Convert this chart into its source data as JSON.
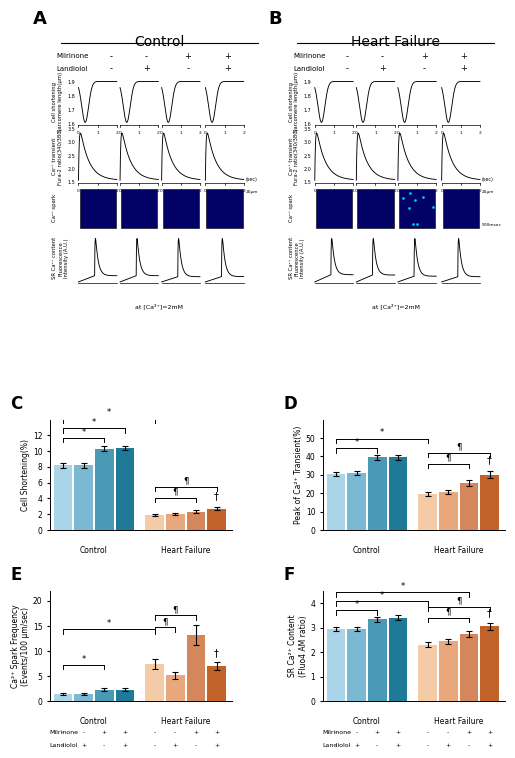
{
  "panel_C": {
    "title": "C",
    "ylabel": "Cell Shortening(%)",
    "ylim": [
      0,
      14
    ],
    "yticks": [
      0,
      2,
      4,
      6,
      8,
      10,
      12
    ],
    "bars": [
      8.2,
      8.2,
      10.3,
      10.4,
      1.9,
      2.0,
      2.3,
      2.7
    ],
    "errors": [
      0.3,
      0.3,
      0.3,
      0.3,
      0.1,
      0.1,
      0.2,
      0.2
    ],
    "colors": [
      "#aad4e8",
      "#7bb8d4",
      "#4a9ab5",
      "#1e7a96",
      "#f5cba7",
      "#e8a87c",
      "#d4875a",
      "#c0622a"
    ]
  },
  "panel_D": {
    "title": "D",
    "ylabel": "Peak of Ca²⁺ Transient(%)",
    "ylim": [
      0,
      60
    ],
    "yticks": [
      0,
      10,
      20,
      30,
      40,
      50
    ],
    "bars": [
      30.5,
      31.0,
      39.5,
      39.5,
      19.5,
      20.5,
      25.5,
      30.0
    ],
    "errors": [
      1.0,
      1.0,
      1.5,
      1.5,
      1.0,
      1.0,
      1.5,
      2.0
    ],
    "colors": [
      "#aad4e8",
      "#7bb8d4",
      "#4a9ab5",
      "#1e7a96",
      "#f5cba7",
      "#e8a87c",
      "#d4875a",
      "#c0622a"
    ]
  },
  "panel_E": {
    "title": "E",
    "ylabel": "Ca²⁺ Spark Frequency\n(Events/100 μm/sec)",
    "ylim": [
      0,
      22
    ],
    "yticks": [
      0,
      5,
      10,
      15,
      20
    ],
    "bars": [
      1.5,
      1.5,
      2.3,
      2.3,
      7.5,
      5.2,
      13.2,
      7.0
    ],
    "errors": [
      0.2,
      0.2,
      0.3,
      0.3,
      1.0,
      0.7,
      2.0,
      0.8
    ],
    "colors": [
      "#aad4e8",
      "#7bb8d4",
      "#4a9ab5",
      "#1e7a96",
      "#f5cba7",
      "#e8a87c",
      "#d4875a",
      "#c0622a"
    ]
  },
  "panel_F": {
    "title": "F",
    "ylabel": "SR Ca²⁺ Content\n(Fluo4 AM ratio)",
    "ylim": [
      0,
      4.5
    ],
    "yticks": [
      0,
      1,
      2,
      3,
      4
    ],
    "bars": [
      2.95,
      2.95,
      3.35,
      3.4,
      2.3,
      2.45,
      2.75,
      3.05
    ],
    "errors": [
      0.08,
      0.08,
      0.1,
      0.1,
      0.1,
      0.1,
      0.12,
      0.15
    ],
    "colors": [
      "#aad4e8",
      "#7bb8d4",
      "#4a9ab5",
      "#1e7a96",
      "#f5cba7",
      "#e8a87c",
      "#d4875a",
      "#c0622a"
    ]
  },
  "milrinone_labels": [
    "-",
    "-",
    "+",
    "+",
    "-",
    "-",
    "+",
    "+"
  ],
  "landiolol_labels": [
    "-",
    "+",
    "-",
    "+",
    "-",
    "+",
    "-",
    "+"
  ],
  "background_color": "#ffffff"
}
